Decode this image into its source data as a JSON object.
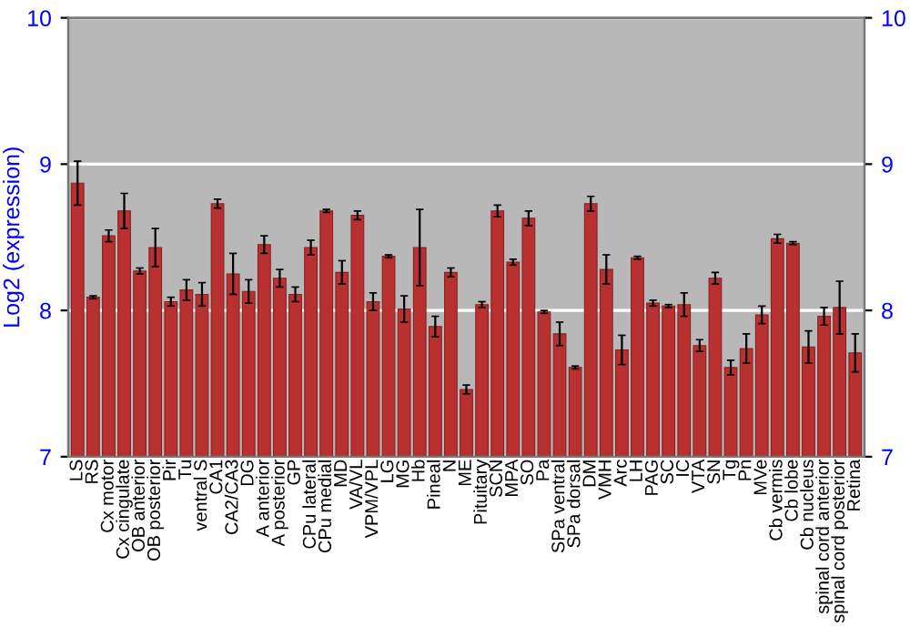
{
  "chart_data": {
    "type": "bar",
    "ylabel": "Log2 (expression)",
    "categories": [
      "LS",
      "RS",
      "Cx motor",
      "Cx cingulate",
      "OB anterior",
      "OB posterior",
      "Pir",
      "Tu",
      "ventral S",
      "CA1",
      "CA2/CA3",
      "DG",
      "A anterior",
      "A posterior",
      "GP",
      "CPu lateral",
      "CPu medial",
      "MD",
      "VA/VL",
      "VPM/VPL",
      "LG",
      "MG",
      "Hb",
      "Pineal",
      "N",
      "ME",
      "Pituitary",
      "SCN",
      "MPA",
      "SO",
      "Pa",
      "SPa ventral",
      "SPa dorsal",
      "DM",
      "VMH",
      "Arc",
      "LH",
      "PAG",
      "SC",
      "IC",
      "VTA",
      "SN",
      "Tg",
      "Pn",
      "MVe",
      "Cb vermis",
      "Cb lobe",
      "Cb nucleus",
      "spinal cord anterior",
      "spinal cord posterior",
      "Retina"
    ],
    "values": [
      8.87,
      8.09,
      8.51,
      8.68,
      8.27,
      8.43,
      8.06,
      8.14,
      8.11,
      8.73,
      8.25,
      8.13,
      8.45,
      8.22,
      8.11,
      8.43,
      8.68,
      8.26,
      8.65,
      8.06,
      8.37,
      8.01,
      8.43,
      7.89,
      8.26,
      7.46,
      8.04,
      8.68,
      8.33,
      8.63,
      7.99,
      7.84,
      7.61,
      8.73,
      8.28,
      7.73,
      8.36,
      8.05,
      8.03,
      8.04,
      7.76,
      8.22,
      7.61,
      7.74,
      7.97,
      8.49,
      8.46,
      7.75,
      7.96,
      8.02,
      7.71
    ],
    "errors": [
      0.15,
      0.01,
      0.04,
      0.12,
      0.02,
      0.13,
      0.03,
      0.07,
      0.08,
      0.03,
      0.14,
      0.08,
      0.06,
      0.06,
      0.05,
      0.05,
      0.01,
      0.08,
      0.03,
      0.06,
      0.01,
      0.09,
      0.26,
      0.07,
      0.03,
      0.03,
      0.02,
      0.04,
      0.02,
      0.05,
      0.01,
      0.08,
      0.01,
      0.05,
      0.1,
      0.1,
      0.01,
      0.02,
      0.01,
      0.08,
      0.04,
      0.04,
      0.05,
      0.1,
      0.06,
      0.03,
      0.01,
      0.11,
      0.06,
      0.18,
      0.13
    ],
    "color": "#b83030",
    "ylim": [
      7,
      10
    ],
    "yticks": [
      7,
      8,
      9,
      10
    ],
    "y2lim": [
      7,
      10
    ],
    "y2ticks": [
      7,
      8,
      9,
      10
    ],
    "grid": "y"
  }
}
